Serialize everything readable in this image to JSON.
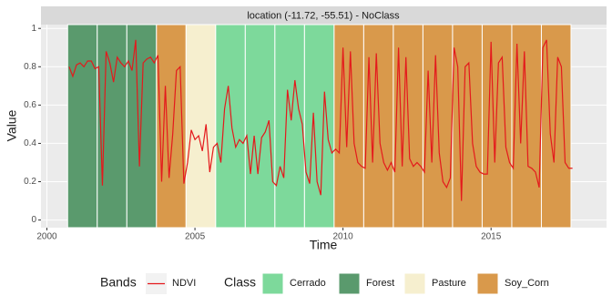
{
  "chart_data": {
    "type": "line",
    "strip_title": "location (-11.72, -55.51) - NoClass",
    "x_label": "Time",
    "y_label": "Value",
    "xlim": [
      1999.8,
      2018.9
    ],
    "ylim": [
      -0.04,
      1.02
    ],
    "xticks": [
      2000,
      2005,
      2010,
      2015
    ],
    "yticks": [
      0,
      0.2,
      0.4,
      0.6,
      0.8,
      1
    ],
    "grid": true,
    "legend_position": "bottom",
    "bands_title": "Bands",
    "class_title": "Class",
    "classes": [
      {
        "name": "Cerrado",
        "color": "#7dd99b"
      },
      {
        "name": "Forest",
        "color": "#5a9a6d"
      },
      {
        "name": "Pasture",
        "color": "#f6efcf"
      },
      {
        "name": "Soy_Corn",
        "color": "#d9994b"
      }
    ],
    "segment_edges": [
      2000.7,
      2001.7,
      2002.7,
      2003.7,
      2004.7,
      2005.7,
      2006.7,
      2007.7,
      2008.7,
      2009.7,
      2010.7,
      2011.7,
      2012.7,
      2013.7,
      2014.7,
      2015.7,
      2016.7,
      2017.7
    ],
    "segment_classes": [
      "Forest",
      "Forest",
      "Forest",
      "Soy_Corn",
      "Pasture",
      "Cerrado",
      "Cerrado",
      "Cerrado",
      "Cerrado",
      "Soy_Corn",
      "Soy_Corn",
      "Soy_Corn",
      "Soy_Corn",
      "Soy_Corn",
      "Soy_Corn",
      "Soy_Corn",
      "Soy_Corn"
    ],
    "x": [
      2000.75,
      2000.875,
      2001,
      2001.125,
      2001.25,
      2001.375,
      2001.5,
      2001.625,
      2001.75,
      2001.875,
      2002,
      2002.125,
      2002.25,
      2002.375,
      2002.5,
      2002.625,
      2002.75,
      2002.875,
      2003,
      2003.125,
      2003.25,
      2003.375,
      2003.5,
      2003.625,
      2003.75,
      2003.875,
      2004,
      2004.125,
      2004.25,
      2004.375,
      2004.5,
      2004.625,
      2004.75,
      2004.875,
      2005,
      2005.125,
      2005.25,
      2005.375,
      2005.5,
      2005.625,
      2005.75,
      2005.875,
      2006,
      2006.125,
      2006.25,
      2006.375,
      2006.5,
      2006.625,
      2006.75,
      2006.875,
      2007,
      2007.125,
      2007.25,
      2007.375,
      2007.5,
      2007.625,
      2007.75,
      2007.875,
      2008,
      2008.125,
      2008.25,
      2008.375,
      2008.5,
      2008.625,
      2008.75,
      2008.875,
      2009,
      2009.125,
      2009.25,
      2009.375,
      2009.5,
      2009.625,
      2009.75,
      2009.875,
      2010,
      2010.125,
      2010.25,
      2010.375,
      2010.5,
      2010.625,
      2010.75,
      2010.875,
      2011,
      2011.125,
      2011.25,
      2011.375,
      2011.5,
      2011.625,
      2011.75,
      2011.875,
      2012,
      2012.125,
      2012.25,
      2012.375,
      2012.5,
      2012.625,
      2012.75,
      2012.875,
      2013,
      2013.125,
      2013.25,
      2013.375,
      2013.5,
      2013.625,
      2013.75,
      2013.875,
      2014,
      2014.125,
      2014.25,
      2014.375,
      2014.5,
      2014.625,
      2014.75,
      2014.875,
      2015,
      2015.125,
      2015.25,
      2015.375,
      2015.5,
      2015.625,
      2015.75,
      2015.875,
      2016,
      2016.125,
      2016.25,
      2016.375,
      2016.5,
      2016.625,
      2016.75,
      2016.875,
      2017,
      2017.125,
      2017.25,
      2017.375,
      2017.5,
      2017.625,
      2017.75
    ],
    "series": [
      {
        "name": "NDVI",
        "color": "#e4191c",
        "values": [
          0.8,
          0.75,
          0.81,
          0.82,
          0.8,
          0.83,
          0.83,
          0.79,
          0.8,
          0.18,
          0.88,
          0.82,
          0.72,
          0.85,
          0.82,
          0.8,
          0.83,
          0.78,
          0.94,
          0.28,
          0.82,
          0.84,
          0.85,
          0.82,
          0.86,
          0.2,
          0.7,
          0.22,
          0.45,
          0.78,
          0.8,
          0.19,
          0.3,
          0.47,
          0.42,
          0.44,
          0.36,
          0.5,
          0.25,
          0.38,
          0.4,
          0.3,
          0.58,
          0.7,
          0.48,
          0.38,
          0.42,
          0.4,
          0.44,
          0.24,
          0.44,
          0.24,
          0.43,
          0.46,
          0.52,
          0.2,
          0.18,
          0.28,
          0.22,
          0.68,
          0.52,
          0.73,
          0.58,
          0.5,
          0.25,
          0.19,
          0.56,
          0.2,
          0.13,
          0.67,
          0.42,
          0.35,
          0.37,
          0.35,
          0.9,
          0.38,
          0.88,
          0.4,
          0.3,
          0.28,
          0.27,
          0.85,
          0.3,
          0.87,
          0.4,
          0.3,
          0.26,
          0.3,
          0.25,
          0.9,
          0.28,
          0.85,
          0.32,
          0.28,
          0.3,
          0.28,
          0.25,
          0.78,
          0.3,
          0.86,
          0.35,
          0.2,
          0.17,
          0.22,
          0.9,
          0.8,
          0.1,
          0.8,
          0.82,
          0.4,
          0.28,
          0.25,
          0.24,
          0.24,
          0.93,
          0.3,
          0.82,
          0.85,
          0.38,
          0.3,
          0.27,
          0.92,
          0.4,
          0.88,
          0.28,
          0.27,
          0.25,
          0.17,
          0.9,
          0.94,
          0.45,
          0.3,
          0.85,
          0.8,
          0.3,
          0.27,
          0.27
        ]
      }
    ]
  }
}
